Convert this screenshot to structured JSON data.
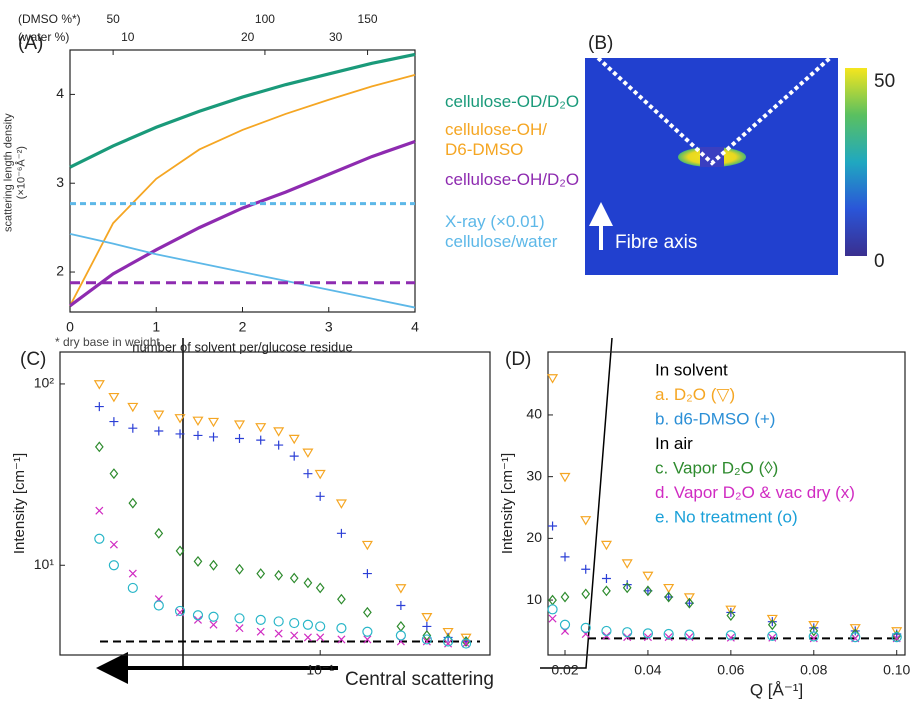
{
  "chart_data": [
    {
      "panel": "(A)",
      "type": "line",
      "xlabel": "number of solvent per/glucose residue",
      "ylabel": "scattering length density\n(×10⁻⁶Å⁻²)",
      "footnote": "* dry base in weight",
      "x": [
        0,
        0.5,
        1,
        1.5,
        2,
        2.5,
        3,
        3.5,
        4
      ],
      "xlim": [
        0,
        4
      ],
      "ylim": [
        1.55,
        4.5
      ],
      "xticks": [
        0,
        1,
        2,
        3,
        4
      ],
      "yticks": [
        2,
        3,
        4
      ],
      "top_axes": [
        {
          "label": "(DMSO %*)",
          "ticks": [
            50,
            100,
            150
          ],
          "positions": [
            0.5,
            2.26,
            3.45
          ]
        },
        {
          "label": "(water %)",
          "ticks": [
            10,
            20,
            30
          ],
          "positions": [
            0.67,
            2.06,
            3.08
          ]
        }
      ],
      "series": [
        {
          "name": "cellulose-OD/D₂O",
          "color": "#1a9a7a",
          "values": [
            3.18,
            3.42,
            3.63,
            3.81,
            3.97,
            4.11,
            4.23,
            4.35,
            4.45
          ]
        },
        {
          "name": "cellulose-OH/\nD6-DMSO",
          "color": "#f5a623",
          "values": [
            1.62,
            2.55,
            3.05,
            3.38,
            3.6,
            3.78,
            3.94,
            4.09,
            4.22
          ]
        },
        {
          "name": "cellulose-OH/D₂O",
          "color": "#8e2bb0",
          "values": [
            1.62,
            1.98,
            2.25,
            2.5,
            2.72,
            2.9,
            3.1,
            3.3,
            3.47
          ]
        },
        {
          "name": "X-ray (×0.01)\ncellulose/water",
          "color": "#5db8e8",
          "values": [
            2.43,
            2.32,
            2.2,
            2.1,
            2.0,
            1.9,
            1.8,
            1.7,
            1.6
          ]
        },
        {
          "color": "#5db8e8",
          "dash": true,
          "values": [
            2.77,
            2.77,
            2.77,
            2.77,
            2.77,
            2.77,
            2.77,
            2.77,
            2.77
          ]
        },
        {
          "color": "#8e2bb0",
          "dash": true,
          "values": [
            1.88,
            1.88,
            1.88,
            1.88,
            1.88,
            1.88,
            1.88,
            1.88,
            1.88
          ]
        }
      ]
    },
    {
      "panel": "(B)",
      "type": "image",
      "annotation": "Fibre axis",
      "clim": [
        0,
        50
      ],
      "colorbar_ticks": [
        0,
        50
      ]
    },
    {
      "panel": "(C)",
      "type": "scatter",
      "xscale": "log",
      "yscale": "log",
      "ylabel": "Intensity [cm⁻¹]",
      "annotation": "Central scattering",
      "x": [
        0.015,
        0.017,
        0.02,
        0.025,
        0.03,
        0.035,
        0.04,
        0.05,
        0.06,
        0.07,
        0.08,
        0.09,
        0.1,
        0.12,
        0.15,
        0.2,
        0.25,
        0.3,
        0.35
      ],
      "xlim": [
        0.0107,
        0.43
      ],
      "ylim": [
        3.2,
        150
      ],
      "xticks": [
        {
          "value": 0.1,
          "label": "10⁻¹"
        }
      ],
      "yticks": [
        {
          "value": 10,
          "label": "10¹"
        },
        {
          "value": 100,
          "label": "10²"
        }
      ],
      "baseline": 3.8,
      "series": [
        {
          "color": "#f5a623",
          "marker": "tri",
          "values": [
            100,
            85,
            75,
            68,
            65,
            63,
            62,
            60,
            58,
            55,
            50,
            42,
            32,
            22,
            13,
            7.5,
            5.2,
            4.3,
            4.0
          ]
        },
        {
          "color": "#2b3fd6",
          "marker": "plus",
          "values": [
            75,
            62,
            57,
            55,
            53,
            52,
            51,
            50,
            49,
            46,
            40,
            32,
            24,
            15,
            9,
            6,
            4.6,
            4.0,
            3.8
          ]
        },
        {
          "color": "#2e8b2e",
          "marker": "diamond",
          "values": [
            45,
            32,
            22,
            15,
            12,
            10.5,
            10,
            9.5,
            9,
            8.8,
            8.5,
            8,
            7.5,
            6.5,
            5.5,
            4.6,
            4.1,
            3.9,
            3.8
          ]
        },
        {
          "color": "#d02bc2",
          "marker": "x",
          "values": [
            20,
            13,
            9,
            6.5,
            5.5,
            5,
            4.7,
            4.5,
            4.3,
            4.2,
            4.1,
            4.0,
            4.0,
            3.9,
            3.9,
            3.8,
            3.8,
            3.7,
            3.7
          ]
        },
        {
          "color": "#29b6c8",
          "marker": "circle",
          "values": [
            14,
            10,
            7.5,
            6,
            5.6,
            5.3,
            5.2,
            5.1,
            5.0,
            4.9,
            4.8,
            4.7,
            4.6,
            4.5,
            4.3,
            4.1,
            3.9,
            3.8,
            3.7
          ]
        }
      ]
    },
    {
      "panel": "(D)",
      "type": "scatter",
      "xlabel": "Q [Å⁻¹]",
      "ylabel": "Intensity [cm⁻¹]",
      "x": [
        0.017,
        0.02,
        0.025,
        0.03,
        0.035,
        0.04,
        0.045,
        0.05,
        0.06,
        0.07,
        0.08,
        0.09,
        0.1
      ],
      "xlim": [
        0.0159,
        0.102
      ],
      "ylim": [
        1.1,
        50.2
      ],
      "xticks": [
        0.02,
        0.04,
        0.06,
        0.08,
        {
          "value": 0.1,
          "label": "0.10"
        }
      ],
      "yticks": [
        10,
        20,
        30,
        40
      ],
      "baseline": 3.8,
      "legend_headers": [
        "In solvent",
        "In air"
      ],
      "series": [
        {
          "name": "a. D₂O (▽)",
          "color": "#f5a623",
          "marker": "tri",
          "values": [
            46,
            30,
            23,
            19,
            16,
            14,
            12,
            10.5,
            8.5,
            7,
            6,
            5.5,
            5
          ]
        },
        {
          "name": "b. d6-DMSO (+)",
          "color": "#2b3fd6",
          "text_color": "#2b8fd6",
          "marker": "plus",
          "values": [
            22,
            17,
            15,
            13.5,
            12.5,
            11.5,
            10.5,
            9.5,
            8,
            6.5,
            5.5,
            5,
            4.5
          ]
        },
        {
          "name": "c. Vapor D₂O (◊)",
          "color": "#2e8b2e",
          "marker": "diamond",
          "values": [
            10,
            10.5,
            11,
            11.5,
            12,
            11.5,
            10.5,
            9.5,
            7.5,
            6,
            5,
            4.5,
            4.2
          ]
        },
        {
          "name": "d. Vapor D₂O & vac dry (x)",
          "color": "#d02bc2",
          "marker": "x",
          "values": [
            7,
            5,
            4.5,
            4.2,
            4,
            4,
            4,
            4,
            3.9,
            3.9,
            3.8,
            3.8,
            3.8
          ]
        },
        {
          "name": "e. No treatment (o)",
          "color": "#29b6c8",
          "text_color": "#1aa0d8",
          "marker": "circle",
          "values": [
            8.5,
            6,
            5.5,
            5,
            4.8,
            4.6,
            4.5,
            4.4,
            4.3,
            4.2,
            4.1,
            4,
            4
          ]
        }
      ]
    }
  ]
}
